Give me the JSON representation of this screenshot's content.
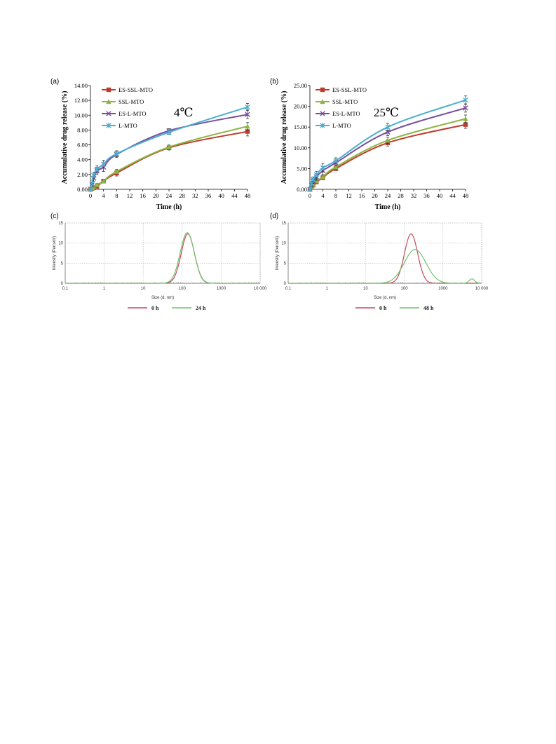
{
  "chart_data": [
    {
      "panel": "(a)",
      "type": "line",
      "annotation": "4℃",
      "xlabel": "Time (h)",
      "ylabel": "Accumulative drug release (%)",
      "xlim": [
        0,
        48
      ],
      "ylim": [
        0,
        14
      ],
      "xticks": [
        "0",
        "4",
        "8",
        "12",
        "16",
        "20",
        "24",
        "28",
        "32",
        "36",
        "40",
        "44",
        "48"
      ],
      "yticks": [
        "0.00",
        "2.00",
        "4.00",
        "6.00",
        "8.00",
        "10.00",
        "12.00",
        "14.00"
      ],
      "x": [
        0,
        0.5,
        1,
        2,
        4,
        8,
        24,
        48
      ],
      "legend_position": "top-left",
      "series": [
        {
          "name": "ES-SSL-MTO",
          "color": "#c0392b",
          "marker": "square",
          "values": [
            0,
            0.1,
            0.2,
            0.4,
            1.1,
            2.2,
            5.6,
            7.8
          ],
          "errors": [
            0,
            0.1,
            0.1,
            0.2,
            0.2,
            0.4,
            0.3,
            0.6
          ]
        },
        {
          "name": "SSL-MTO",
          "color": "#8db545",
          "marker": "triangle",
          "values": [
            0,
            0.15,
            0.3,
            0.6,
            1.1,
            2.4,
            5.7,
            8.5
          ],
          "errors": [
            0,
            0.1,
            0.1,
            0.2,
            0.2,
            0.3,
            0.3,
            0.5
          ]
        },
        {
          "name": "ES-L-MTO",
          "color": "#7a4f9c",
          "marker": "x",
          "values": [
            0,
            0.6,
            1.5,
            2.5,
            3.0,
            4.7,
            7.9,
            10.1
          ],
          "errors": [
            0,
            0.2,
            0.4,
            0.5,
            0.6,
            0.4,
            0.3,
            0.6
          ]
        },
        {
          "name": "L-MTO",
          "color": "#4aafd0",
          "marker": "star",
          "values": [
            0,
            0.8,
            1.9,
            2.7,
            3.4,
            4.8,
            7.7,
            11.1
          ],
          "errors": [
            0,
            0.2,
            0.4,
            0.5,
            0.5,
            0.4,
            0.3,
            0.5
          ]
        }
      ]
    },
    {
      "panel": "(b)",
      "type": "line",
      "annotation": "25℃",
      "xlabel": "Time (h)",
      "ylabel": "Accumulative drug release (%)",
      "xlim": [
        0,
        48
      ],
      "ylim": [
        0,
        25
      ],
      "xticks": [
        "0",
        "4",
        "8",
        "12",
        "16",
        "20",
        "24",
        "28",
        "32",
        "36",
        "40",
        "44",
        "48"
      ],
      "yticks": [
        "0.00",
        "5.00",
        "10.00",
        "15.00",
        "20.00",
        "25.00"
      ],
      "x": [
        0,
        0.5,
        1,
        2,
        4,
        8,
        24,
        48
      ],
      "legend_position": "top-left",
      "series": [
        {
          "name": "ES-SSL-MTO",
          "color": "#c0392b",
          "marker": "square",
          "values": [
            0,
            0.5,
            1.0,
            1.8,
            2.8,
            5.0,
            11.2,
            15.6
          ],
          "errors": [
            0,
            0.3,
            0.4,
            0.5,
            0.5,
            0.5,
            0.8,
            0.9
          ]
        },
        {
          "name": "SSL-MTO",
          "color": "#8db545",
          "marker": "triangle",
          "values": [
            0,
            0.6,
            1.2,
            2.0,
            3.0,
            5.4,
            11.8,
            17.0
          ],
          "errors": [
            0,
            0.3,
            0.4,
            0.5,
            0.5,
            0.5,
            0.8,
            0.9
          ]
        },
        {
          "name": "ES-L-MTO",
          "color": "#7a4f9c",
          "marker": "x",
          "values": [
            0,
            1.0,
            2.0,
            3.0,
            4.5,
            6.4,
            13.8,
            19.6
          ],
          "errors": [
            0,
            0.5,
            0.6,
            0.8,
            1.0,
            0.7,
            0.9,
            1.0
          ]
        },
        {
          "name": "L-MTO",
          "color": "#4aafd0",
          "marker": "star",
          "values": [
            0,
            1.3,
            2.4,
            3.5,
            5.2,
            6.9,
            15.0,
            21.5
          ],
          "errors": [
            0,
            0.5,
            0.6,
            0.8,
            1.0,
            0.7,
            0.9,
            1.0
          ]
        }
      ]
    },
    {
      "panel": "(c)",
      "type": "line",
      "xlabel": "Size (d, nm)",
      "ylabel": "Intensity (Percent)",
      "xscale": "log",
      "xlim": [
        0.1,
        10000
      ],
      "ylim": [
        0,
        15
      ],
      "xticks": [
        "0.1",
        "1",
        "10",
        "100",
        "1000",
        "10 000"
      ],
      "yticks": [
        "0",
        "5",
        "10",
        "15"
      ],
      "grid": true,
      "legend_position": "bottom-center",
      "series": [
        {
          "name": "0 h",
          "color": "#c94a5a",
          "peaks": [
            {
              "center": 140,
              "height": 12.3,
              "sigma_log10": 0.17
            }
          ]
        },
        {
          "name": "24 h",
          "color": "#6cc46c",
          "peaks": [
            {
              "center": 135,
              "height": 12.6,
              "sigma_log10": 0.18
            }
          ]
        }
      ]
    },
    {
      "panel": "(d)",
      "type": "line",
      "xlabel": "Size (d, nm)",
      "ylabel": "Intensity (Percent)",
      "xscale": "log",
      "xlim": [
        0.1,
        10000
      ],
      "ylim": [
        0,
        15
      ],
      "xticks": [
        "0.1",
        "1",
        "10",
        "100",
        "1000",
        "10 000"
      ],
      "yticks": [
        "0",
        "5",
        "10",
        "15"
      ],
      "grid": true,
      "legend_position": "bottom-center",
      "series": [
        {
          "name": "0 h",
          "color": "#c94a5a",
          "peaks": [
            {
              "center": 150,
              "height": 12.3,
              "sigma_log10": 0.17
            }
          ]
        },
        {
          "name": "48 h",
          "color": "#6cc46c",
          "peaks": [
            {
              "center": 190,
              "height": 8.4,
              "sigma_log10": 0.28
            },
            {
              "center": 5600,
              "height": 1.1,
              "sigma_log10": 0.07
            }
          ]
        }
      ]
    }
  ]
}
